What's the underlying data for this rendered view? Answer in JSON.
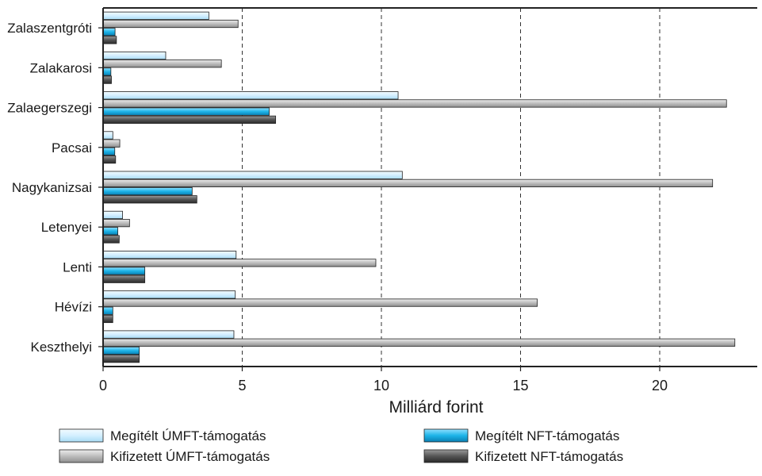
{
  "chart_data": {
    "type": "bar",
    "orientation": "horizontal",
    "categories": [
      "Zalaszentgróti",
      "Zalakarosi",
      "Zalaegerszegi",
      "Pacsai",
      "Nagykanizsai",
      "Letenyei",
      "Lenti",
      "Hévízi",
      "Keszthelyi"
    ],
    "series": [
      {
        "name": "Megítélt ÚMFT-támogatás",
        "color": "#d4efff",
        "values": [
          3.8,
          2.25,
          10.6,
          0.35,
          10.75,
          0.7,
          4.78,
          4.75,
          4.7
        ]
      },
      {
        "name": "Kifizetett ÚMFT-támogatás",
        "color": "#bdbdbd",
        "values": [
          4.85,
          4.25,
          22.4,
          0.6,
          21.9,
          0.95,
          9.8,
          15.6,
          22.7
        ]
      },
      {
        "name": "Megítélt NFT-támogatás",
        "color": "#1db4e8",
        "values": [
          0.43,
          0.28,
          5.97,
          0.42,
          3.2,
          0.53,
          1.5,
          0.35,
          1.3
        ]
      },
      {
        "name": "Kifizetett NFT-támogatás",
        "color": "#555555",
        "values": [
          0.48,
          0.3,
          6.2,
          0.45,
          3.37,
          0.58,
          1.5,
          0.35,
          1.3
        ]
      }
    ],
    "xlabel": "Milliárd forint",
    "ylabel": "",
    "title": "",
    "xlim": [
      0,
      23.5
    ],
    "xticks": [
      0,
      5,
      10,
      15,
      20
    ],
    "grid": "vertical-dashed",
    "legend_position": "bottom"
  }
}
